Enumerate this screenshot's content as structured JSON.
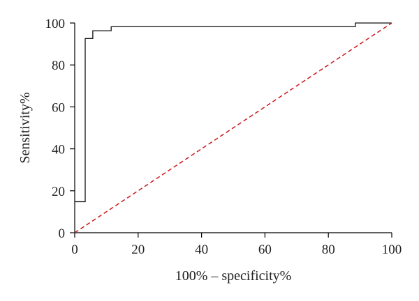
{
  "chart_data": {
    "type": "line",
    "title": "",
    "xlabel": "100% – specificity%",
    "ylabel": "Sensitivity%",
    "xlim": [
      0,
      100
    ],
    "ylim": [
      0,
      100
    ],
    "xticks": [
      0,
      20,
      40,
      60,
      80,
      100
    ],
    "yticks": [
      0,
      20,
      40,
      60,
      80,
      100
    ],
    "grid": false,
    "series": [
      {
        "style": "step",
        "color": "#111111",
        "x": [
          0,
          3.3,
          3.3,
          5.7,
          5.7,
          11.5,
          11.5,
          88.5,
          88.5,
          100
        ],
        "y": [
          14.8,
          14.8,
          92.6,
          92.6,
          96.3,
          96.3,
          98.2,
          98.2,
          100,
          100
        ]
      },
      {
        "style": "dashed",
        "color": "#c8191e",
        "x": [
          0,
          100
        ],
        "y": [
          0,
          100
        ]
      }
    ]
  }
}
